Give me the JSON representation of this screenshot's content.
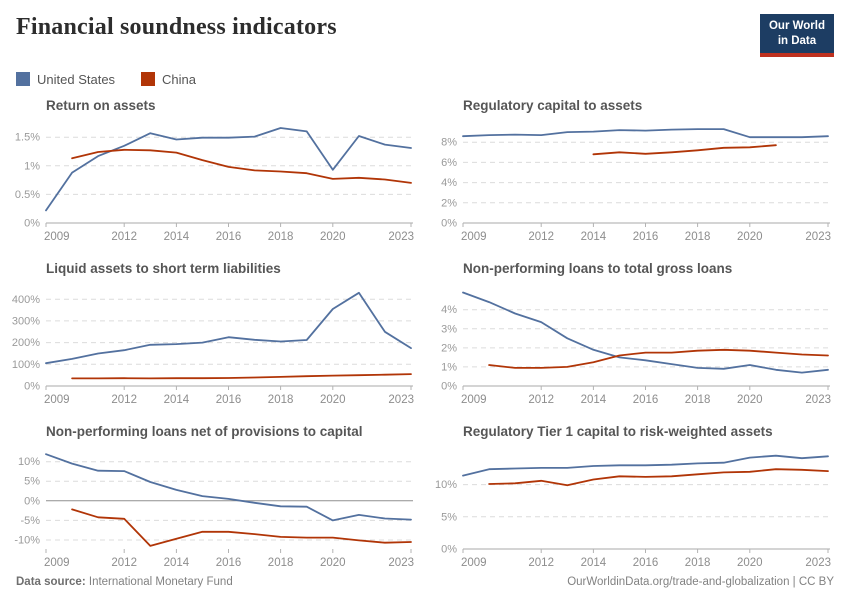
{
  "page_title": "Financial soundness indicators",
  "logo": {
    "line1": "Our World",
    "line2": "in Data"
  },
  "colors": {
    "united_states": "#53719f",
    "china": "#b13507",
    "logo_bg": "#1d3d63",
    "logo_bar": "#bf311f"
  },
  "legend": {
    "items": [
      {
        "label": "United States",
        "color_key": "united_states"
      },
      {
        "label": "China",
        "color_key": "china"
      }
    ]
  },
  "chart_data": [
    {
      "type": "line",
      "title": "Return on assets",
      "x": {
        "min": 2009,
        "max": 2023,
        "ticks": [
          2009,
          2012,
          2014,
          2016,
          2018,
          2020,
          2023
        ]
      },
      "y": {
        "min": 0,
        "max": 1.8,
        "ticks": [
          {
            "v": 0,
            "label": "0%"
          },
          {
            "v": 0.5,
            "label": "0.5%"
          },
          {
            "v": 1,
            "label": "1%"
          },
          {
            "v": 1.5,
            "label": "1.5%"
          }
        ]
      },
      "zero_baseline": false,
      "series": [
        {
          "name": "United States",
          "color_key": "united_states",
          "start_year": 2009,
          "values": [
            0.22,
            0.88,
            1.17,
            1.35,
            1.57,
            1.46,
            1.49,
            1.49,
            1.51,
            1.66,
            1.6,
            0.93,
            1.52,
            1.37,
            1.31
          ]
        },
        {
          "name": "China",
          "color_key": "china",
          "start_year": 2010,
          "values": [
            1.13,
            1.24,
            1.28,
            1.27,
            1.23,
            1.1,
            0.98,
            0.92,
            0.9,
            0.87,
            0.77,
            0.79,
            0.76,
            0.7
          ]
        }
      ]
    },
    {
      "type": "line",
      "title": "Regulatory capital to assets",
      "x": {
        "min": 2009,
        "max": 2023,
        "ticks": [
          2009,
          2012,
          2014,
          2016,
          2018,
          2020,
          2023
        ]
      },
      "y": {
        "min": 0,
        "max": 10.2,
        "ticks": [
          {
            "v": 0,
            "label": "0%"
          },
          {
            "v": 2,
            "label": "2%"
          },
          {
            "v": 4,
            "label": "4%"
          },
          {
            "v": 6,
            "label": "6%"
          },
          {
            "v": 8,
            "label": "8%"
          }
        ]
      },
      "zero_baseline": false,
      "series": [
        {
          "name": "United States",
          "color_key": "united_states",
          "start_year": 2009,
          "values": [
            8.6,
            8.7,
            8.75,
            8.7,
            9.0,
            9.05,
            9.2,
            9.15,
            9.25,
            9.3,
            9.3,
            8.5,
            8.5,
            8.5,
            8.6
          ]
        },
        {
          "name": "China",
          "color_key": "china",
          "start_year": 2014,
          "values": [
            6.8,
            7.0,
            6.85,
            7.0,
            7.2,
            7.45,
            7.5,
            7.7
          ]
        }
      ]
    },
    {
      "type": "line",
      "title": "Liquid assets to short term liabilities",
      "x": {
        "min": 2009,
        "max": 2023,
        "ticks": [
          2009,
          2012,
          2014,
          2016,
          2018,
          2020,
          2023
        ]
      },
      "y": {
        "min": 0,
        "max": 475,
        "ticks": [
          {
            "v": 0,
            "label": "0%"
          },
          {
            "v": 100,
            "label": "100%"
          },
          {
            "v": 200,
            "label": "200%"
          },
          {
            "v": 300,
            "label": "300%"
          },
          {
            "v": 400,
            "label": "400%"
          }
        ]
      },
      "zero_baseline": false,
      "series": [
        {
          "name": "United States",
          "color_key": "united_states",
          "start_year": 2009,
          "values": [
            105,
            125,
            150,
            165,
            190,
            193,
            200,
            225,
            213,
            205,
            212,
            355,
            430,
            250,
            175
          ]
        },
        {
          "name": "China",
          "color_key": "china",
          "start_year": 2010,
          "values": [
            35,
            35,
            36,
            35,
            36,
            36,
            37,
            39,
            42,
            45,
            48,
            50,
            52,
            55
          ]
        }
      ]
    },
    {
      "type": "line",
      "title": "Non-performing loans to total gross loans",
      "x": {
        "min": 2009,
        "max": 2023,
        "ticks": [
          2009,
          2012,
          2014,
          2016,
          2018,
          2020,
          2023
        ]
      },
      "y": {
        "min": 0,
        "max": 5.4,
        "ticks": [
          {
            "v": 0,
            "label": "0%"
          },
          {
            "v": 1,
            "label": "1%"
          },
          {
            "v": 2,
            "label": "2%"
          },
          {
            "v": 3,
            "label": "3%"
          },
          {
            "v": 4,
            "label": "4%"
          }
        ]
      },
      "zero_baseline": false,
      "series": [
        {
          "name": "United States",
          "color_key": "united_states",
          "start_year": 2009,
          "values": [
            4.9,
            4.4,
            3.8,
            3.35,
            2.5,
            1.9,
            1.5,
            1.35,
            1.15,
            0.95,
            0.9,
            1.1,
            0.85,
            0.7,
            0.85
          ]
        },
        {
          "name": "China",
          "color_key": "china",
          "start_year": 2010,
          "values": [
            1.1,
            0.95,
            0.95,
            1.0,
            1.25,
            1.6,
            1.75,
            1.75,
            1.85,
            1.9,
            1.85,
            1.75,
            1.65,
            1.6
          ]
        }
      ]
    },
    {
      "type": "line",
      "title": "Non-performing loans net of provisions to capital",
      "x": {
        "min": 2009,
        "max": 2023,
        "ticks": [
          2009,
          2012,
          2014,
          2016,
          2018,
          2020,
          2023
        ]
      },
      "y": {
        "min": -12.3,
        "max": 14,
        "ticks": [
          {
            "v": -10,
            "label": "-10%"
          },
          {
            "v": -5,
            "label": "-5%"
          },
          {
            "v": 0,
            "label": "0%"
          },
          {
            "v": 5,
            "label": "5%"
          },
          {
            "v": 10,
            "label": "10%"
          }
        ]
      },
      "zero_baseline": true,
      "series": [
        {
          "name": "United States",
          "color_key": "united_states",
          "start_year": 2009,
          "values": [
            11.9,
            9.5,
            7.7,
            7.6,
            4.8,
            2.8,
            1.2,
            0.5,
            -0.5,
            -1.4,
            -1.5,
            -5.0,
            -3.6,
            -4.5,
            -4.8
          ]
        },
        {
          "name": "China",
          "color_key": "china",
          "start_year": 2010,
          "values": [
            -2.2,
            -4.2,
            -4.6,
            -11.5,
            -9.7,
            -7.9,
            -7.9,
            -8.5,
            -9.2,
            -9.4,
            -9.4,
            -10.1,
            -10.7,
            -10.5
          ]
        }
      ]
    },
    {
      "type": "line",
      "title": "Regulatory Tier 1 capital to risk-weighted assets",
      "x": {
        "min": 2009,
        "max": 2023,
        "ticks": [
          2009,
          2012,
          2014,
          2016,
          2018,
          2020,
          2023
        ]
      },
      "y": {
        "min": 0,
        "max": 16,
        "ticks": [
          {
            "v": 0,
            "label": "0%"
          },
          {
            "v": 5,
            "label": "5%"
          },
          {
            "v": 10,
            "label": "10%"
          }
        ]
      },
      "zero_baseline": false,
      "series": [
        {
          "name": "United States",
          "color_key": "united_states",
          "start_year": 2009,
          "values": [
            11.4,
            12.4,
            12.5,
            12.6,
            12.6,
            12.9,
            13.0,
            13.0,
            13.1,
            13.3,
            13.4,
            14.2,
            14.5,
            14.1,
            14.4
          ]
        },
        {
          "name": "China",
          "color_key": "china",
          "start_year": 2010,
          "values": [
            10.1,
            10.2,
            10.6,
            9.9,
            10.8,
            11.3,
            11.2,
            11.3,
            11.6,
            11.9,
            12.0,
            12.4,
            12.3,
            12.1
          ]
        }
      ]
    }
  ],
  "footer": {
    "source_label": "Data source:",
    "source_value": "International Monetary Fund",
    "credit_link": "OurWorldinData.org/trade-and-globalization",
    "credit_suffix": " | CC BY"
  }
}
